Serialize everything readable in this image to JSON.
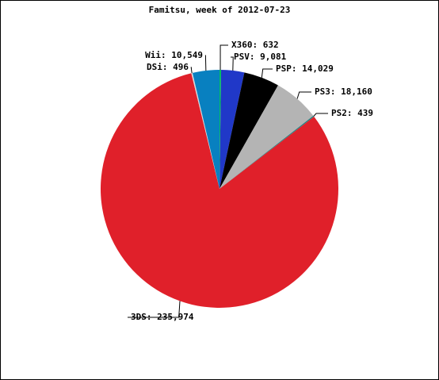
{
  "chart_data": {
    "type": "pie",
    "title": "Famitsu, week of 2012-07-23",
    "values": [
      632,
      9081,
      14029,
      18160,
      439,
      235974,
      496,
      10549
    ],
    "value_labels": [
      "X360: 632",
      "PSV: 9,081",
      "PSP: 14,029",
      "PS3: 18,160",
      "PS2: 439",
      "3DS: 235,974",
      "DSi: 496",
      "Wii: 10,549"
    ],
    "colors": [
      "#00c060",
      "#2038c8",
      "#000000",
      "#b4b4b4",
      "#208080",
      "#e0202a",
      "#d8d8d8",
      "#0880c0"
    ]
  }
}
